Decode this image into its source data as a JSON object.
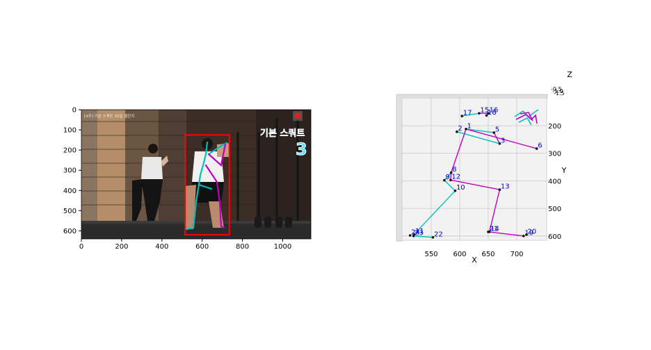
{
  "chart_data": [
    {
      "type": "image",
      "xlim": [
        0,
        1140
      ],
      "ylim": [
        640,
        0
      ],
      "x_ticks": [
        0,
        200,
        400,
        600,
        800,
        1000
      ],
      "y_ticks": [
        0,
        100,
        200,
        300,
        400,
        500,
        600
      ],
      "overlay_text": {
        "title": "기본 스쿼트",
        "number": "3",
        "caption": "[4주] 기본 스쿼트 30일 챌린지"
      },
      "bounding_box": {
        "x": [
          515,
          735
        ],
        "y": [
          125,
          620
        ],
        "color": "#ff0000"
      },
      "colors": {
        "left_limb": "#00bfbf",
        "right_limb": "#bf00bf",
        "box": "#ff0000"
      }
    },
    {
      "type": "scatter3d",
      "xlabel": "X",
      "ylabel": "Y",
      "zlabel": "Z",
      "x_ticks": [
        550,
        600,
        650,
        700
      ],
      "y_ticks": [
        200,
        300,
        400,
        500,
        600
      ],
      "keypoints": [
        {
          "label": "1",
          "x": 611,
          "y": 212
        },
        {
          "label": "2",
          "x": 595,
          "y": 222
        },
        {
          "label": "3",
          "x": 670,
          "y": 265
        },
        {
          "label": "5",
          "x": 660,
          "y": 225
        },
        {
          "label": "6",
          "x": 735,
          "y": 283
        },
        {
          "label": "8",
          "x": 585,
          "y": 370
        },
        {
          "label": "9",
          "x": 573,
          "y": 398
        },
        {
          "label": "10",
          "x": 592,
          "y": 436
        },
        {
          "label": "12",
          "x": 584,
          "y": 397
        },
        {
          "label": "13",
          "x": 670,
          "y": 432
        },
        {
          "label": "11",
          "x": 520,
          "y": 594
        },
        {
          "label": "14",
          "x": 652,
          "y": 585
        },
        {
          "label": "15",
          "x": 634,
          "y": 155
        },
        {
          "label": "16",
          "x": 650,
          "y": 155
        },
        {
          "label": "17",
          "x": 604,
          "y": 165
        },
        {
          "label": "18",
          "x": 647,
          "y": 163
        },
        {
          "label": "19",
          "x": 712,
          "y": 600
        },
        {
          "label": "20",
          "x": 717,
          "y": 595
        },
        {
          "label": "21",
          "x": 650,
          "y": 585
        },
        {
          "label": "22",
          "x": 553,
          "y": 605
        },
        {
          "label": "23",
          "x": 519,
          "y": 600
        },
        {
          "label": "24",
          "x": 513,
          "y": 598
        }
      ],
      "bones": [
        {
          "from": "2",
          "to": "3",
          "color": "#00bfbf"
        },
        {
          "from": "1",
          "to": "5",
          "color": "#00bfbf"
        },
        {
          "from": "5",
          "to": "3",
          "color": "#bf00bf"
        },
        {
          "from": "1",
          "to": "6",
          "color": "#bf00bf"
        },
        {
          "from": "1",
          "to": "8",
          "color": "#bf00bf"
        },
        {
          "from": "8",
          "to": "9",
          "color": "#00bfbf"
        },
        {
          "from": "9",
          "to": "10",
          "color": "#00bfbf"
        },
        {
          "from": "8",
          "to": "12",
          "color": "#bf00bf"
        },
        {
          "from": "12",
          "to": "13",
          "color": "#bf00bf"
        },
        {
          "from": "10",
          "to": "11",
          "color": "#00bfbf"
        },
        {
          "from": "13",
          "to": "14",
          "color": "#bf00bf"
        },
        {
          "from": "11",
          "to": "23",
          "color": "#00bfbf"
        },
        {
          "from": "23",
          "to": "22",
          "color": "#00bfbf"
        },
        {
          "from": "21",
          "to": "19",
          "color": "#bf00bf"
        },
        {
          "from": "15",
          "to": "17",
          "color": "#00bfbf"
        },
        {
          "from": "15",
          "to": "16",
          "color": "#bf00bf"
        },
        {
          "from": "16",
          "to": "18",
          "color": "#bf00bf"
        }
      ]
    }
  ]
}
